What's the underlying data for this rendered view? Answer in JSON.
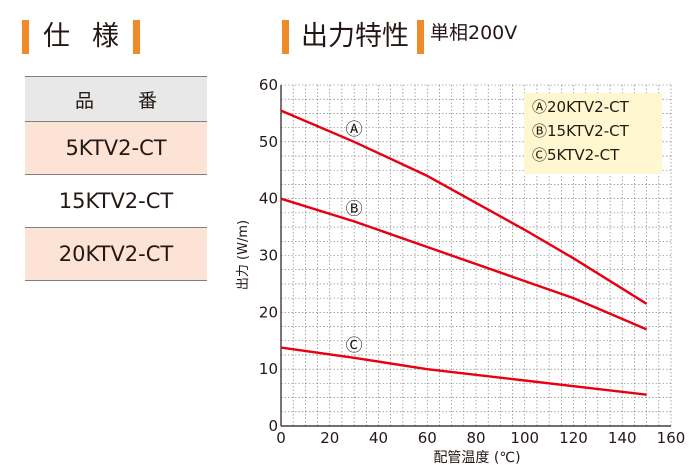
{
  "colors": {
    "accent": "#f08b2a",
    "line": "#e60012",
    "spec_head_bg": "#e8e8e8",
    "spec_row_alt_bg": "#fde3d5",
    "legend_bg": "#fff7cf"
  },
  "spec": {
    "title": "仕様",
    "header": "品番",
    "rows": [
      {
        "label": "5KTV2-CT",
        "shaded": true
      },
      {
        "label": "15KTV2-CT",
        "shaded": false
      },
      {
        "label": "20KTV2-CT",
        "shaded": true
      }
    ]
  },
  "output": {
    "title": "出力特性",
    "subtitle": "単相200V"
  },
  "chart_data": {
    "type": "line",
    "xlabel": "配管温度 (℃)",
    "ylabel": "出力 (W/m)",
    "xlim": [
      0,
      160
    ],
    "ylim": [
      0,
      60
    ],
    "x_ticks": [
      0,
      20,
      40,
      60,
      80,
      100,
      120,
      140,
      160
    ],
    "y_ticks": [
      0,
      10,
      20,
      30,
      40,
      50,
      60
    ],
    "grid": true,
    "legend_position": "top-right",
    "legend": [
      "Ⓐ20KTV2-CT",
      "Ⓑ15KTV2-CT",
      "Ⓒ5KTV2-CT"
    ],
    "series": [
      {
        "name": "Ⓐ",
        "x": [
          0,
          30,
          60,
          100,
          120,
          150
        ],
        "y": [
          55.5,
          50,
          44,
          34.5,
          29.5,
          21.5
        ],
        "label_x": 30
      },
      {
        "name": "Ⓑ",
        "x": [
          0,
          30,
          60,
          100,
          120,
          150
        ],
        "y": [
          40,
          36,
          31.5,
          25.5,
          22.5,
          17
        ],
        "label_x": 30
      },
      {
        "name": "Ⓒ",
        "x": [
          0,
          30,
          60,
          100,
          150
        ],
        "y": [
          13.8,
          12,
          10,
          8,
          5.5
        ],
        "label_x": 30
      }
    ]
  }
}
